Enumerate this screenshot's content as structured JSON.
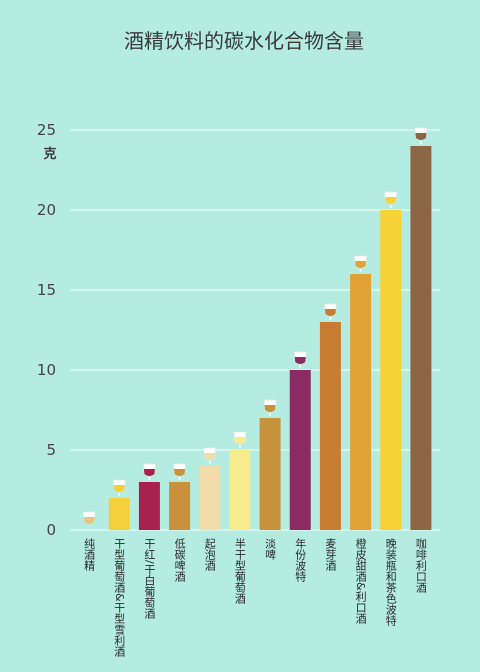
{
  "chart_data": {
    "type": "bar",
    "title": "酒精饮料的碳水化合物含量",
    "ylabel": "克",
    "xlabel": "",
    "ylim": [
      0,
      25
    ],
    "yticks": [
      0,
      5,
      10,
      15,
      20,
      25
    ],
    "grid": true,
    "categories": [
      "纯酒精",
      "干型葡萄酒&干型雪利酒",
      "干红/干白葡萄酒",
      "低碳啤酒",
      "起泡酒",
      "半干型葡萄酒",
      "淡啤",
      "年份波特",
      "麦芽酒",
      "橙皮甜酒&利口酒",
      "晚装瓶和茶色波特",
      "咖啡利口酒"
    ],
    "values": [
      0,
      2,
      3,
      3,
      4,
      5,
      7,
      10,
      13,
      16,
      20,
      24
    ],
    "colors": [
      "#e3c77a",
      "#f3cf3a",
      "#a8204e",
      "#c9913c",
      "#f1dcaa",
      "#f7ec8d",
      "#c7923c",
      "#8c2a63",
      "#c87d33",
      "#e3a236",
      "#f5d235",
      "#8d6646"
    ]
  }
}
